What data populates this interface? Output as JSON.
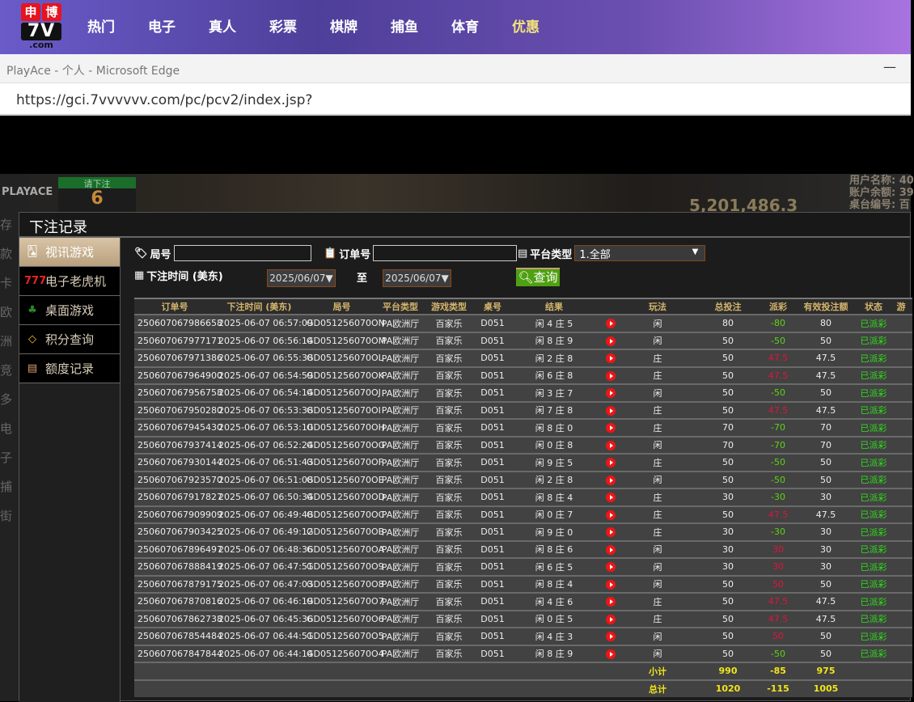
{
  "site": {
    "logo_top": [
      "申",
      "博"
    ],
    "logo_mid": "7V",
    "logo_bottom": ".com",
    "nav": [
      "热门",
      "电子",
      "真人",
      "彩票",
      "棋牌",
      "捕鱼",
      "体育",
      "优惠"
    ],
    "highlight": "优惠"
  },
  "browser": {
    "title": "PlayAce - 个人 - Microsoft Edge",
    "url": "https://gci.7vvvvvv.com/pc/pcv2/index.jsp?"
  },
  "game_bg": {
    "brand": "PLAYACE",
    "bet_label": "请下注",
    "bet_count": "6",
    "pool": "5,201,486.3",
    "info": [
      "用户名称: 40",
      "账户余额: 39",
      "桌台编号: 百"
    ],
    "side": [
      "存款",
      "卡",
      "欧洲",
      "竞",
      "多",
      "电子",
      "捕",
      "街"
    ]
  },
  "modal": {
    "title": "下注记录",
    "sidebar": [
      {
        "label": "视讯游戏",
        "icon": "cards-icon",
        "active": true
      },
      {
        "label": "电子老虎机",
        "icon": "slot-777-icon"
      },
      {
        "label": "桌面游戏",
        "icon": "table-chips-icon"
      },
      {
        "label": "积分查询",
        "icon": "diamond-icon"
      },
      {
        "label": "额度记录",
        "icon": "document-icon"
      }
    ],
    "filters": {
      "round_label": "局号",
      "round_value": "",
      "order_label": "订单号",
      "order_value": "",
      "platform_label": "平台类型",
      "platform_value": "1.全部",
      "time_label": "下注时间 (美东)",
      "date_from": "2025/06/07▼",
      "to_label": "至",
      "date_to": "2025/06/07▼",
      "query_button": "查询"
    },
    "table": {
      "headers": [
        "订单号",
        "下注时间 (美东)",
        "局号",
        "平台类型",
        "游戏类型",
        "桌号",
        "结果",
        "",
        "玩法",
        "总投注",
        "派彩",
        "有效投注额",
        "状态",
        "游"
      ],
      "rows": [
        [
          "250607067986658",
          "2025-06-07 06:57:09",
          "GD051256070ON",
          "PA欧洲厅",
          "百家乐",
          "D051",
          "闲 4 庄 5",
          "闲",
          "80",
          "-80",
          "80",
          "已派彩"
        ],
        [
          "250607067977171",
          "2025-06-07 06:56:14",
          "GD051256070OM",
          "PA欧洲厅",
          "百家乐",
          "D051",
          "闲 8 庄 9",
          "闲",
          "50",
          "-50",
          "50",
          "已派彩"
        ],
        [
          "250607067971386",
          "2025-06-07 06:55:38",
          "GD051256070OL",
          "PA欧洲厅",
          "百家乐",
          "D051",
          "闲 2 庄 8",
          "庄",
          "50",
          "47.5",
          "47.5",
          "已派彩"
        ],
        [
          "250607067964900",
          "2025-06-07 06:54:59",
          "GD051256070OK",
          "PA欧洲厅",
          "百家乐",
          "D051",
          "闲 6 庄 8",
          "庄",
          "50",
          "47.5",
          "47.5",
          "已派彩"
        ],
        [
          "250607067956758",
          "2025-06-07 06:54:14",
          "GD051256070OJ",
          "PA欧洲厅",
          "百家乐",
          "D051",
          "闲 3 庄 7",
          "闲",
          "50",
          "-50",
          "50",
          "已派彩"
        ],
        [
          "250607067950280",
          "2025-06-07 06:53:38",
          "GD051256070OI",
          "PA欧洲厅",
          "百家乐",
          "D051",
          "闲 7 庄 8",
          "庄",
          "50",
          "47.5",
          "47.5",
          "已派彩"
        ],
        [
          "250607067945430",
          "2025-06-07 06:53:10",
          "GD051256070OH",
          "PA欧洲厅",
          "百家乐",
          "D051",
          "闲 8 庄 0",
          "庄",
          "70",
          "-70",
          "70",
          "已派彩"
        ],
        [
          "250607067937414",
          "2025-06-07 06:52:24",
          "GD051256070OG",
          "PA欧洲厅",
          "百家乐",
          "D051",
          "闲 0 庄 8",
          "闲",
          "70",
          "-70",
          "70",
          "已派彩"
        ],
        [
          "250607067930144",
          "2025-06-07 06:51:43",
          "GD051256070OF",
          "PA欧洲厅",
          "百家乐",
          "D051",
          "闲 9 庄 5",
          "庄",
          "50",
          "-50",
          "50",
          "已派彩"
        ],
        [
          "250607067923570",
          "2025-06-07 06:51:08",
          "GD051256070OE",
          "PA欧洲厅",
          "百家乐",
          "D051",
          "闲 2 庄 8",
          "闲",
          "50",
          "-50",
          "50",
          "已派彩"
        ],
        [
          "250607067917827",
          "2025-06-07 06:50:34",
          "GD051256070OD",
          "PA欧洲厅",
          "百家乐",
          "D051",
          "闲 8 庄 4",
          "庄",
          "30",
          "-30",
          "30",
          "已派彩"
        ],
        [
          "250607067909909",
          "2025-06-07 06:49:48",
          "GD051256070OC",
          "PA欧洲厅",
          "百家乐",
          "D051",
          "闲 0 庄 7",
          "庄",
          "50",
          "47.5",
          "47.5",
          "已派彩"
        ],
        [
          "250607067903425",
          "2025-06-07 06:49:12",
          "GD051256070OB",
          "PA欧洲厅",
          "百家乐",
          "D051",
          "闲 9 庄 0",
          "庄",
          "30",
          "-30",
          "30",
          "已派彩"
        ],
        [
          "250607067896497",
          "2025-06-07 06:48:36",
          "GD051256070OA",
          "PA欧洲厅",
          "百家乐",
          "D051",
          "闲 8 庄 6",
          "闲",
          "30",
          "30",
          "30",
          "已派彩"
        ],
        [
          "250607067888419",
          "2025-06-07 06:47:51",
          "GD051256070O9",
          "PA欧洲厅",
          "百家乐",
          "D051",
          "闲 6 庄 5",
          "闲",
          "30",
          "30",
          "30",
          "已派彩"
        ],
        [
          "250607067879175",
          "2025-06-07 06:47:03",
          "GD051256070O8",
          "PA欧洲厅",
          "百家乐",
          "D051",
          "闲 8 庄 4",
          "闲",
          "50",
          "50",
          "50",
          "已派彩"
        ],
        [
          "250607067870816",
          "2025-06-07 06:46:19",
          "GD051256070O7",
          "PA欧洲厅",
          "百家乐",
          "D051",
          "闲 4 庄 6",
          "庄",
          "50",
          "47.5",
          "47.5",
          "已派彩"
        ],
        [
          "250607067862738",
          "2025-06-07 06:45:36",
          "GD051256070O6",
          "PA欧洲厅",
          "百家乐",
          "D051",
          "闲 0 庄 5",
          "庄",
          "50",
          "47.5",
          "47.5",
          "已派彩"
        ],
        [
          "250607067854484",
          "2025-06-07 06:44:51",
          "GD051256070O5",
          "PA欧洲厅",
          "百家乐",
          "D051",
          "闲 4 庄 3",
          "闲",
          "50",
          "50",
          "50",
          "已派彩"
        ],
        [
          "250607067847844",
          "2025-06-07 06:44:14",
          "GD051256070O4",
          "PA欧洲厅",
          "百家乐",
          "D051",
          "闲 8 庄 9",
          "闲",
          "50",
          "-50",
          "50",
          "已派彩"
        ]
      ],
      "subtotal": {
        "label": "小计",
        "total_bet": "990",
        "payout": "-85",
        "valid_bet": "975"
      },
      "total": {
        "label": "总计",
        "total_bet": "1020",
        "payout": "-115",
        "valid_bet": "1005"
      }
    },
    "colors": {
      "payout_negative": "#5cd414",
      "payout_positive": "#e0143c",
      "status": "#2fdd1a",
      "header_text": "#d6b56c",
      "totals": "#f2e51a"
    }
  }
}
